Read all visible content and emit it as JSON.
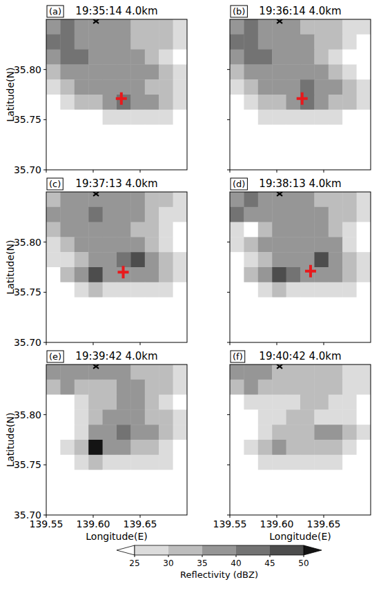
{
  "chart_data": [
    {
      "type": "heatmap",
      "title": "19:35:14 4.0km",
      "label": "(a)",
      "y_label": "Latitude(N)",
      "tick_labels": "y",
      "xlim": [
        139.55,
        139.7
      ],
      "ylim": [
        35.7,
        35.85
      ],
      "xticks": [
        139.55,
        {
          "value": 139.6,
          "label": "139.60"
        },
        139.65
      ],
      "yticks": [
        {
          "value": 35.7,
          "label": "35.70"
        },
        35.75,
        {
          "value": 35.8,
          "label": "35.80"
        }
      ],
      "x": [
        139.5575,
        139.5725,
        139.5875,
        139.6025,
        139.6175,
        139.6325,
        139.6475,
        139.6625,
        139.6775,
        139.6925
      ],
      "y": [
        35.8425,
        35.8275,
        35.8125,
        35.7975,
        35.7825,
        35.7675,
        35.7525,
        35.7375,
        35.7225,
        35.7075
      ],
      "cells": [
        [
          37,
          42,
          37,
          37,
          37,
          37,
          32,
          32,
          32,
          27
        ],
        [
          42,
          42,
          37,
          37,
          37,
          37,
          32,
          32,
          32,
          27
        ],
        [
          37,
          42,
          42,
          37,
          37,
          37,
          37,
          32,
          27,
          20
        ],
        [
          32,
          37,
          37,
          37,
          37,
          37,
          37,
          37,
          32,
          27
        ],
        [
          27,
          32,
          37,
          37,
          37,
          37,
          37,
          32,
          32,
          27
        ],
        [
          20,
          27,
          32,
          32,
          37,
          42,
          37,
          37,
          32,
          27
        ],
        [
          20,
          20,
          20,
          20,
          27,
          27,
          27,
          27,
          27,
          20
        ],
        [
          20,
          20,
          20,
          20,
          20,
          20,
          20,
          20,
          20,
          20
        ],
        [
          20,
          20,
          20,
          20,
          20,
          20,
          20,
          20,
          20,
          20
        ],
        [
          20,
          20,
          20,
          20,
          20,
          20,
          20,
          20,
          20,
          20
        ]
      ],
      "target": {
        "x": 139.63,
        "y": 35.771
      },
      "site": {
        "x": 139.603,
        "y": 35.848
      }
    },
    {
      "type": "heatmap",
      "title": "19:36:14 4.0km",
      "label": "(b)",
      "tick_labels": false,
      "xlim": [
        139.55,
        139.7
      ],
      "ylim": [
        35.7,
        35.85
      ],
      "xticks": [
        139.55,
        {
          "value": 139.6,
          "label": "139.60"
        },
        139.65
      ],
      "yticks": [
        {
          "value": 35.7,
          "label": "35.70"
        },
        35.75,
        {
          "value": 35.8,
          "label": "35.80"
        }
      ],
      "x": [
        139.5575,
        139.5725,
        139.5875,
        139.6025,
        139.6175,
        139.6325,
        139.6475,
        139.6625,
        139.6775,
        139.6925
      ],
      "y": [
        35.8425,
        35.8275,
        35.8125,
        35.7975,
        35.7825,
        35.7675,
        35.7525,
        35.7375,
        35.7225,
        35.7075
      ],
      "cells": [
        [
          37,
          42,
          37,
          37,
          37,
          32,
          32,
          32,
          27,
          27
        ],
        [
          42,
          42,
          37,
          37,
          37,
          37,
          32,
          32,
          27,
          20
        ],
        [
          37,
          42,
          42,
          37,
          37,
          37,
          32,
          27,
          20,
          20
        ],
        [
          32,
          37,
          37,
          37,
          37,
          37,
          37,
          32,
          27,
          20
        ],
        [
          27,
          32,
          37,
          37,
          37,
          42,
          37,
          37,
          32,
          27
        ],
        [
          20,
          27,
          32,
          32,
          37,
          42,
          37,
          32,
          32,
          27
        ],
        [
          20,
          20,
          27,
          27,
          27,
          27,
          27,
          27,
          20,
          20
        ],
        [
          20,
          20,
          20,
          20,
          20,
          20,
          20,
          20,
          20,
          20
        ],
        [
          20,
          20,
          20,
          20,
          20,
          20,
          20,
          20,
          20,
          20
        ],
        [
          20,
          20,
          20,
          20,
          20,
          20,
          20,
          20,
          20,
          20
        ]
      ],
      "target": {
        "x": 139.627,
        "y": 35.771
      },
      "site": {
        "x": 139.603,
        "y": 35.848
      }
    },
    {
      "type": "heatmap",
      "title": "19:37:13 4.0km",
      "label": "(c)",
      "y_label": "Latitude(N)",
      "tick_labels": "y",
      "xlim": [
        139.55,
        139.7
      ],
      "ylim": [
        35.7,
        35.85
      ],
      "xticks": [
        139.55,
        {
          "value": 139.6,
          "label": "139.60"
        },
        139.65
      ],
      "yticks": [
        {
          "value": 35.7,
          "label": "35.70"
        },
        35.75,
        {
          "value": 35.8,
          "label": "35.80"
        }
      ],
      "x": [
        139.5575,
        139.5725,
        139.5875,
        139.6025,
        139.6175,
        139.6325,
        139.6475,
        139.6625,
        139.6775,
        139.6925
      ],
      "y": [
        35.8425,
        35.8275,
        35.8125,
        35.7975,
        35.7825,
        35.7675,
        35.7525,
        35.7375,
        35.7225,
        35.7075
      ],
      "cells": [
        [
          32,
          37,
          37,
          37,
          37,
          37,
          37,
          32,
          32,
          27
        ],
        [
          37,
          37,
          37,
          42,
          37,
          37,
          37,
          32,
          27,
          27
        ],
        [
          32,
          37,
          37,
          37,
          37,
          37,
          32,
          32,
          27,
          20
        ],
        [
          27,
          32,
          37,
          37,
          37,
          37,
          37,
          32,
          27,
          20
        ],
        [
          27,
          27,
          32,
          37,
          37,
          42,
          47,
          37,
          32,
          27
        ],
        [
          20,
          32,
          37,
          47,
          37,
          37,
          37,
          37,
          32,
          27
        ],
        [
          20,
          20,
          27,
          32,
          27,
          27,
          27,
          27,
          27,
          20
        ],
        [
          20,
          20,
          20,
          20,
          20,
          20,
          20,
          20,
          20,
          20
        ],
        [
          20,
          20,
          20,
          20,
          20,
          20,
          20,
          20,
          20,
          20
        ],
        [
          20,
          20,
          20,
          20,
          20,
          20,
          20,
          20,
          20,
          20
        ]
      ],
      "target": {
        "x": 139.632,
        "y": 35.77
      },
      "site": {
        "x": 139.603,
        "y": 35.848
      }
    },
    {
      "type": "heatmap",
      "title": "19:38:13 4.0km",
      "label": "(d)",
      "tick_labels": false,
      "xlim": [
        139.55,
        139.7
      ],
      "ylim": [
        35.7,
        35.85
      ],
      "xticks": [
        139.55,
        {
          "value": 139.6,
          "label": "139.60"
        },
        139.65
      ],
      "yticks": [
        {
          "value": 35.7,
          "label": "35.70"
        },
        35.75,
        {
          "value": 35.8,
          "label": "35.80"
        }
      ],
      "x": [
        139.5575,
        139.5725,
        139.5875,
        139.6025,
        139.6175,
        139.6325,
        139.6475,
        139.6625,
        139.6775,
        139.6925
      ],
      "y": [
        35.8425,
        35.8275,
        35.8125,
        35.7975,
        35.7825,
        35.7675,
        35.7525,
        35.7375,
        35.7225,
        35.7075
      ],
      "cells": [
        [
          37,
          42,
          37,
          37,
          37,
          37,
          32,
          32,
          32,
          27
        ],
        [
          42,
          37,
          37,
          37,
          37,
          37,
          37,
          32,
          32,
          27
        ],
        [
          27,
          20,
          32,
          37,
          37,
          37,
          37,
          32,
          27,
          20
        ],
        [
          27,
          32,
          37,
          37,
          37,
          37,
          37,
          37,
          27,
          20
        ],
        [
          20,
          27,
          32,
          37,
          37,
          37,
          47,
          37,
          32,
          27
        ],
        [
          20,
          32,
          37,
          47,
          42,
          37,
          37,
          37,
          32,
          27
        ],
        [
          20,
          20,
          27,
          32,
          27,
          27,
          27,
          27,
          27,
          20
        ],
        [
          20,
          20,
          20,
          20,
          20,
          20,
          20,
          20,
          20,
          20
        ],
        [
          20,
          20,
          20,
          20,
          20,
          20,
          20,
          20,
          20,
          20
        ],
        [
          20,
          20,
          20,
          20,
          20,
          20,
          20,
          20,
          20,
          20
        ]
      ],
      "target": {
        "x": 139.636,
        "y": 35.771
      },
      "site": {
        "x": 139.603,
        "y": 35.848
      }
    },
    {
      "type": "heatmap",
      "title": "19:39:42 4.0km",
      "label": "(e)",
      "x_label": "Longitude(E)",
      "y_label": "Latitude(N)",
      "tick_labels": true,
      "xlim": [
        139.55,
        139.7
      ],
      "ylim": [
        35.7,
        35.85
      ],
      "xticks": [
        139.55,
        {
          "value": 139.6,
          "label": "139.60"
        },
        139.65
      ],
      "yticks": [
        {
          "value": 35.7,
          "label": "35.70"
        },
        35.75,
        {
          "value": 35.8,
          "label": "35.80"
        }
      ],
      "x": [
        139.5575,
        139.5725,
        139.5875,
        139.6025,
        139.6175,
        139.6325,
        139.6475,
        139.6625,
        139.6775,
        139.6925
      ],
      "y": [
        35.8425,
        35.8275,
        35.8125,
        35.7975,
        35.7825,
        35.7675,
        35.7525,
        35.7375,
        35.7225,
        35.7075
      ],
      "cells": [
        [
          37,
          37,
          37,
          37,
          37,
          37,
          32,
          32,
          32,
          27
        ],
        [
          32,
          37,
          32,
          32,
          32,
          37,
          37,
          32,
          32,
          27
        ],
        [
          20,
          20,
          27,
          32,
          32,
          37,
          37,
          32,
          27,
          20
        ],
        [
          20,
          20,
          27,
          32,
          37,
          37,
          37,
          32,
          32,
          27
        ],
        [
          20,
          20,
          27,
          37,
          37,
          42,
          37,
          37,
          32,
          27
        ],
        [
          20,
          27,
          32,
          52,
          37,
          37,
          32,
          32,
          27,
          20
        ],
        [
          20,
          20,
          27,
          32,
          27,
          27,
          27,
          27,
          27,
          20
        ],
        [
          20,
          20,
          20,
          20,
          20,
          20,
          20,
          20,
          20,
          20
        ],
        [
          20,
          20,
          20,
          20,
          20,
          20,
          20,
          20,
          20,
          20
        ],
        [
          20,
          20,
          20,
          20,
          20,
          20,
          20,
          20,
          20,
          20
        ]
      ],
      "site": {
        "x": 139.603,
        "y": 35.848
      }
    },
    {
      "type": "heatmap",
      "title": "19:40:42 4.0km",
      "label": "(f)",
      "x_label": "Longitude(E)",
      "tick_labels": "x",
      "xlim": [
        139.55,
        139.7
      ],
      "ylim": [
        35.7,
        35.85
      ],
      "xticks": [
        139.55,
        {
          "value": 139.6,
          "label": "139.60"
        },
        139.65
      ],
      "yticks": [
        {
          "value": 35.7,
          "label": "35.70"
        },
        35.75,
        {
          "value": 35.8,
          "label": "35.80"
        }
      ],
      "x": [
        139.5575,
        139.5725,
        139.5875,
        139.6025,
        139.6175,
        139.6325,
        139.6475,
        139.6625,
        139.6775,
        139.6925
      ],
      "y": [
        35.8425,
        35.8275,
        35.8125,
        35.7975,
        35.7825,
        35.7675,
        35.7525,
        35.7375,
        35.7225,
        35.7075
      ],
      "cells": [
        [
          37,
          37,
          37,
          32,
          32,
          32,
          32,
          32,
          27,
          27
        ],
        [
          32,
          37,
          32,
          32,
          32,
          32,
          32,
          32,
          27,
          27
        ],
        [
          20,
          27,
          27,
          27,
          27,
          32,
          32,
          27,
          27,
          20
        ],
        [
          20,
          20,
          27,
          27,
          32,
          32,
          27,
          27,
          27,
          20
        ],
        [
          20,
          20,
          27,
          32,
          32,
          32,
          37,
          37,
          32,
          27
        ],
        [
          20,
          27,
          32,
          37,
          32,
          32,
          32,
          32,
          27,
          20
        ],
        [
          20,
          20,
          27,
          27,
          27,
          27,
          27,
          27,
          20,
          20
        ],
        [
          20,
          20,
          20,
          20,
          20,
          20,
          20,
          20,
          20,
          20
        ],
        [
          20,
          20,
          20,
          20,
          20,
          20,
          20,
          20,
          20,
          20
        ],
        [
          20,
          20,
          20,
          20,
          20,
          20,
          20,
          20,
          20,
          20
        ]
      ],
      "site": {
        "x": 139.603,
        "y": 35.848
      }
    }
  ],
  "colorbar": {
    "label": "Reflectivity (dBZ)",
    "range": [
      25,
      50
    ],
    "ticks": [
      25,
      30,
      35,
      40,
      45,
      50
    ],
    "colors": [
      "#ffffff",
      "#dcdcdc",
      "#bdbdbd",
      "#969696",
      "#737373",
      "#4d4d4d",
      "#141414"
    ]
  }
}
